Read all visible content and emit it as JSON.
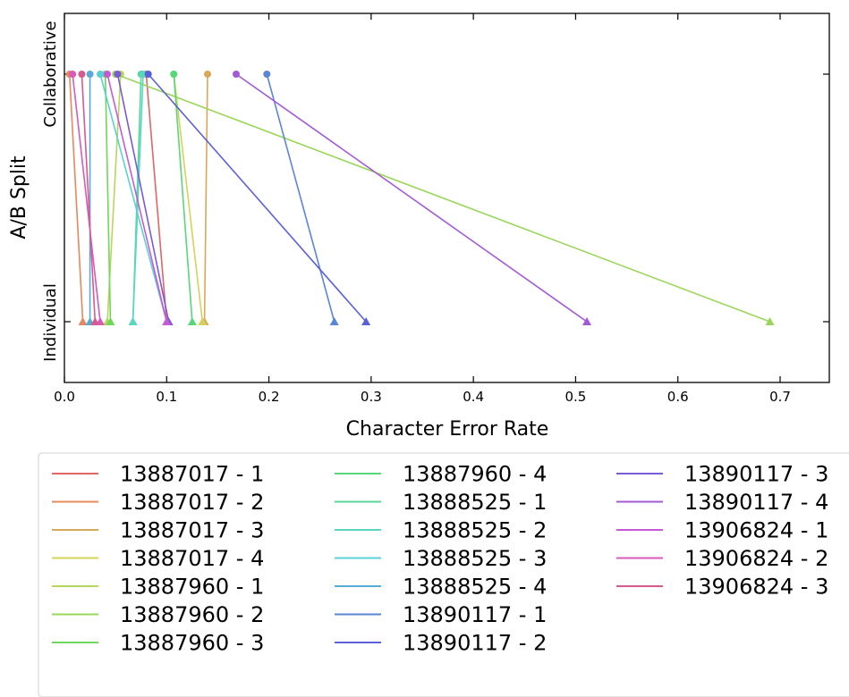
{
  "chart_data": {
    "type": "line",
    "title": "",
    "xlabel": "Character Error Rate",
    "ylabel": "A/B Split",
    "xlim": [
      0.0,
      0.75
    ],
    "x_ticks": [
      "0.0",
      "0.1",
      "0.2",
      "0.3",
      "0.4",
      "0.5",
      "0.6",
      "0.7"
    ],
    "x_tick_values": [
      0.0,
      0.1,
      0.2,
      0.3,
      0.4,
      0.5,
      0.6,
      0.7
    ],
    "categories": [
      "Collaborative",
      "Individual"
    ],
    "grid": false,
    "legend_position": "below",
    "series": [
      {
        "name": "13887017 - 1",
        "color": "#e06666",
        "collaborative": 0.08,
        "individual": 0.1
      },
      {
        "name": "13887017 - 2",
        "color": "#e5885b",
        "collaborative": 0.005,
        "individual": 0.018
      },
      {
        "name": "13887017 - 3",
        "color": "#d6a95a",
        "collaborative": 0.14,
        "individual": 0.137
      },
      {
        "name": "13887017 - 4",
        "color": "#d3d35a",
        "collaborative": 0.107,
        "individual": 0.135
      },
      {
        "name": "13887960 - 1",
        "color": "#b8d65a",
        "collaborative": 0.055,
        "individual": 0.042
      },
      {
        "name": "13887960 - 2",
        "color": "#9ad65a",
        "collaborative": 0.05,
        "individual": 0.69
      },
      {
        "name": "13887960 - 3",
        "color": "#6fd65a",
        "collaborative": 0.04,
        "individual": 0.045
      },
      {
        "name": "13887960 - 4",
        "color": "#5ad67a",
        "collaborative": 0.107,
        "individual": 0.125
      },
      {
        "name": "13888525 - 1",
        "color": "#5ad69b",
        "collaborative": 0.075,
        "individual": 0.067
      },
      {
        "name": "13888525 - 2",
        "color": "#5ad6c0",
        "collaborative": 0.077,
        "individual": 0.067
      },
      {
        "name": "13888525 - 3",
        "color": "#5acfd6",
        "collaborative": 0.035,
        "individual": 0.1
      },
      {
        "name": "13888525 - 4",
        "color": "#5aaad6",
        "collaborative": 0.025,
        "individual": 0.025
      },
      {
        "name": "13890117 - 1",
        "color": "#5a86d6",
        "collaborative": 0.198,
        "individual": 0.264
      },
      {
        "name": "13890117 - 2",
        "color": "#5a61d6",
        "collaborative": 0.082,
        "individual": 0.295
      },
      {
        "name": "13890117 - 3",
        "color": "#7a5ad6",
        "collaborative": 0.052,
        "individual": 0.102
      },
      {
        "name": "13890117 - 4",
        "color": "#a15ad6",
        "collaborative": 0.168,
        "individual": 0.511
      },
      {
        "name": "13906824 - 1",
        "color": "#c65ad6",
        "collaborative": 0.042,
        "individual": 0.1
      },
      {
        "name": "13906824 - 2",
        "color": "#d65ab8",
        "collaborative": 0.008,
        "individual": 0.035
      },
      {
        "name": "13906824 - 3",
        "color": "#d65a8f",
        "collaborative": 0.017,
        "individual": 0.03
      }
    ]
  }
}
